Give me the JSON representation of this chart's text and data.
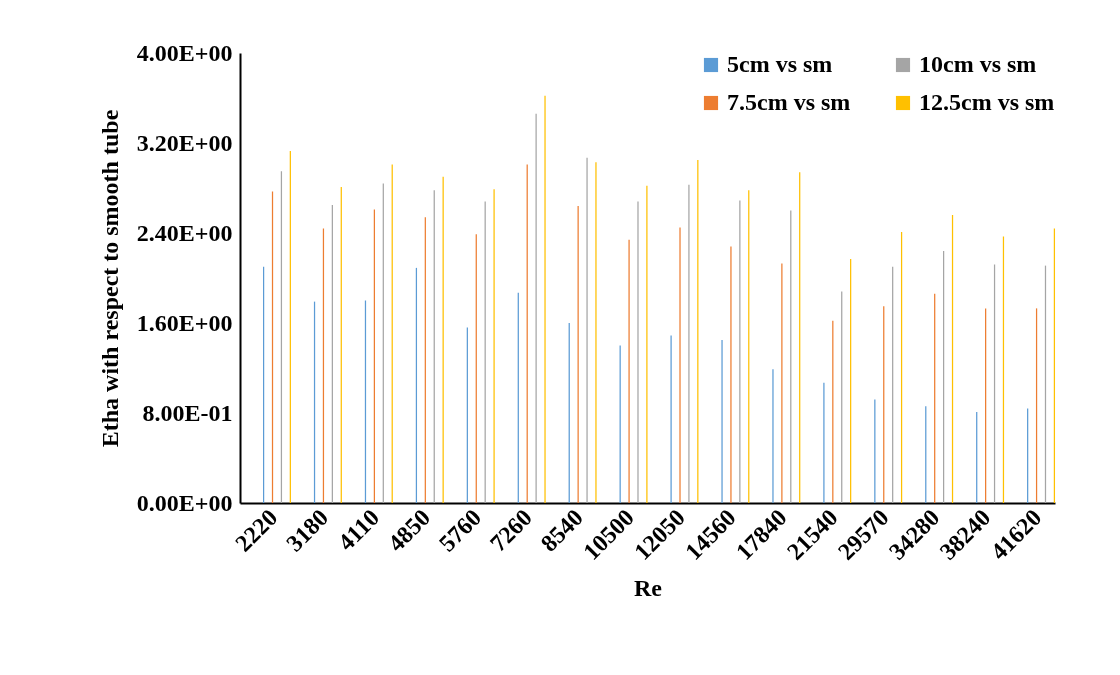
{
  "chart_data": {
    "type": "bar",
    "xlabel": "Re",
    "ylabel": "Etha with respect to smooth tube",
    "categories": [
      "2220",
      "3180",
      "4110",
      "4850",
      "5760",
      "7260",
      "8540",
      "10500",
      "12050",
      "14560",
      "17840",
      "21540",
      "29570",
      "34280",
      "38240",
      "41620"
    ],
    "series": [
      {
        "name": "5cm vs sm",
        "color": "#5b9bd5",
        "values": [
          2.1,
          1.79,
          1.8,
          2.09,
          1.56,
          1.87,
          1.6,
          1.4,
          1.49,
          1.45,
          1.19,
          1.07,
          0.92,
          0.86,
          0.81,
          0.84
        ]
      },
      {
        "name": "7.5cm vs sm",
        "color": "#ed7d31",
        "values": [
          2.77,
          2.44,
          2.61,
          2.54,
          2.39,
          3.01,
          2.64,
          2.34,
          2.45,
          2.28,
          2.13,
          1.62,
          1.75,
          1.86,
          1.73,
          1.73
        ]
      },
      {
        "name": "10cm vs sm",
        "color": "#a5a5a5",
        "values": [
          2.95,
          2.65,
          2.84,
          2.78,
          2.68,
          3.46,
          3.07,
          2.68,
          2.83,
          2.69,
          2.6,
          1.88,
          2.1,
          2.24,
          2.12,
          2.11
        ]
      },
      {
        "name": "12.5cm vs sm",
        "color": "#ffc000",
        "values": [
          3.13,
          2.81,
          3.01,
          2.9,
          2.79,
          3.62,
          3.03,
          2.82,
          3.05,
          2.78,
          2.94,
          2.17,
          2.41,
          2.56,
          2.37,
          2.44
        ]
      }
    ],
    "ylim": [
      0,
      4
    ],
    "yticks": [
      {
        "value": 0,
        "label": "0.00E+00"
      },
      {
        "value": 0.8,
        "label": "8.00E-01"
      },
      {
        "value": 1.6,
        "label": "1.60E+00"
      },
      {
        "value": 2.4,
        "label": "2.40E+00"
      },
      {
        "value": 3.2,
        "label": "3.20E+00"
      },
      {
        "value": 4,
        "label": "4.00E+00"
      }
    ],
    "grid": false,
    "legend": "top right"
  }
}
